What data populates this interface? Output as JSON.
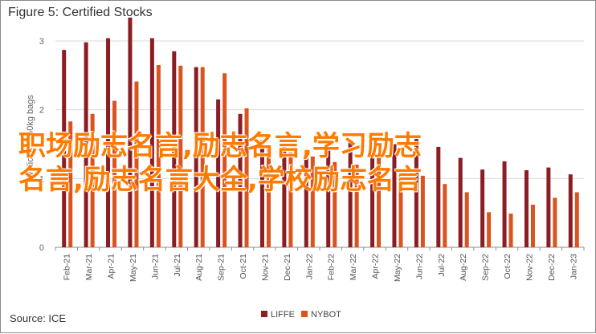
{
  "title": "Figure 5: Certified Stocks",
  "source": "Source: ICE",
  "overlay": {
    "line1": "职场励志名言,励志名言,学习励志",
    "line2": "名言,励志名言大全,学校励志名言"
  },
  "colors": {
    "liffe": "#8b1d24",
    "nybot": "#d9541e",
    "overlay": "#ff7a00",
    "grid": "#d9d9d9",
    "axis": "#8c8c8c"
  },
  "chart_data": {
    "type": "bar",
    "title": "Figure 5: Certified Stocks",
    "ylabel": "Millions of 60kg bags",
    "xlabel": "",
    "ylim": [
      0,
      3
    ],
    "yticks": [
      0,
      1,
      2,
      3
    ],
    "grid": true,
    "legend_position": "bottom",
    "categories": [
      "Feb-21",
      "Mar-21",
      "Apr-21",
      "May-21",
      "Jun-21",
      "Jul-21",
      "Aug-21",
      "Sep-21",
      "Oct-21",
      "Nov-21",
      "Dec-21",
      "Jan-22",
      "Feb-22",
      "Mar-22",
      "Apr-22",
      "May-22",
      "Jun-22",
      "Jul-22",
      "Aug-22",
      "Sep-22",
      "Oct-22",
      "Nov-22",
      "Dec-22",
      "Jan-23"
    ],
    "series": [
      {
        "name": "LIFFE",
        "values": [
          2.87,
          2.98,
          3.04,
          3.34,
          3.04,
          2.85,
          2.62,
          2.15,
          1.94,
          1.56,
          1.48,
          1.4,
          1.44,
          1.52,
          1.42,
          1.5,
          1.6,
          1.46,
          1.3,
          1.13,
          1.25,
          1.12,
          1.16,
          1.06
        ]
      },
      {
        "name": "NYBOT",
        "values": [
          1.83,
          1.94,
          2.13,
          2.41,
          2.65,
          2.64,
          2.62,
          2.53,
          2.02,
          1.44,
          1.38,
          1.32,
          1.24,
          1.2,
          1.32,
          1.1,
          1.04,
          0.92,
          0.8,
          0.51,
          0.49,
          0.62,
          0.72,
          0.8
        ]
      }
    ]
  }
}
